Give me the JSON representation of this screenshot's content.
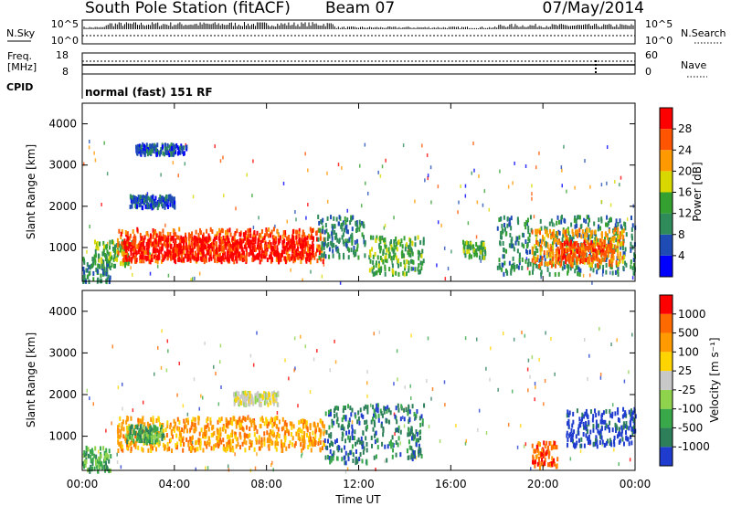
{
  "header": {
    "station": "South Pole Station (fitACF)",
    "beam": "Beam 07",
    "date": "07/May/2014"
  },
  "aux_panels": {
    "nsky_label": "N.Sky",
    "nsky_ticks": [
      "10^5",
      "10^0"
    ],
    "nsearch_label": "N.Search",
    "nsearch_ticks": [
      "10^5",
      "10^0"
    ],
    "freq_label_1": "Freq.",
    "freq_label_2": "[MHz]",
    "freq_ticks": [
      "18",
      "8"
    ],
    "nave_label": "Nave",
    "nave_ticks": [
      "60",
      "0"
    ],
    "cpid_label": "CPID",
    "cpid_value": "normal (fast) 151 RF"
  },
  "chart_data": [
    {
      "type": "heatmap",
      "name": "power",
      "ylabel": "Slant Range [km]",
      "ylim": [
        180,
        4500
      ],
      "yticks": [
        "1000",
        "2000",
        "3000",
        "4000"
      ],
      "xlim": [
        "00:00",
        "24:00"
      ],
      "colorbar_label": "Power [dB]",
      "colorbar_ticks": [
        "4",
        "8",
        "12",
        "16",
        "20",
        "24",
        "28"
      ],
      "colorbar_colors": [
        "#0000ff",
        "#1e4cb4",
        "#2f8c5a",
        "#34a030",
        "#d8d800",
        "#ff9900",
        "#ff5500",
        "#ff0000"
      ],
      "regions": [
        {
          "t0": 0.0,
          "t1": 1.2,
          "r0": 200,
          "r1": 800,
          "level": 2
        },
        {
          "t0": 0.5,
          "t1": 2.0,
          "r0": 600,
          "r1": 1200,
          "level": 3
        },
        {
          "t0": 1.5,
          "t1": 10.5,
          "r0": 700,
          "r1": 1500,
          "level": 6
        },
        {
          "t0": 1.8,
          "t1": 10.0,
          "r0": 750,
          "r1": 1300,
          "level": 7
        },
        {
          "t0": 2.0,
          "t1": 4.0,
          "r0": 2000,
          "r1": 2300,
          "level": 1
        },
        {
          "t0": 2.3,
          "t1": 4.5,
          "r0": 3300,
          "r1": 3550,
          "level": 1
        },
        {
          "t0": 10.2,
          "t1": 12.3,
          "r0": 800,
          "r1": 1800,
          "level": 2
        },
        {
          "t0": 12.4,
          "t1": 14.8,
          "r0": 400,
          "r1": 1300,
          "level": 3
        },
        {
          "t0": 16.5,
          "t1": 17.5,
          "r0": 800,
          "r1": 1200,
          "level": 3
        },
        {
          "t0": 18.0,
          "t1": 24.0,
          "r0": 400,
          "r1": 1800,
          "level": 2
        },
        {
          "t0": 19.5,
          "t1": 23.5,
          "r0": 600,
          "r1": 1500,
          "level": 5
        },
        {
          "t0": 20.5,
          "t1": 23.0,
          "r0": 700,
          "r1": 1200,
          "level": 6
        }
      ]
    },
    {
      "type": "heatmap",
      "name": "velocity",
      "ylabel": "Slant Range [km]",
      "ylim": [
        180,
        4500
      ],
      "yticks": [
        "1000",
        "2000",
        "3000",
        "4000"
      ],
      "xlabel": "Time UT",
      "xticks": [
        "00:00",
        "04:00",
        "08:00",
        "12:00",
        "16:00",
        "20:00",
        "00:00"
      ],
      "colorbar_label": "Velocity [m s⁻¹]",
      "colorbar_ticks": [
        "1000",
        "500",
        "100",
        "25",
        "-25",
        "-100",
        "-500",
        "-1000"
      ],
      "colorbar_colors": [
        "#1f3ccf",
        "#2d7f5a",
        "#39a84a",
        "#8fd34c",
        "#c8c8c8",
        "#ffd400",
        "#ff9a00",
        "#ff6a00",
        "#ff0000"
      ],
      "regions": [
        {
          "t0": 0.0,
          "t1": 1.2,
          "r0": 200,
          "r1": 800,
          "level": 2
        },
        {
          "t0": 1.5,
          "t1": 10.5,
          "r0": 700,
          "r1": 1500,
          "level": 6
        },
        {
          "t0": 1.8,
          "t1": 3.5,
          "r0": 900,
          "r1": 1300,
          "level": 2
        },
        {
          "t0": 6.5,
          "t1": 8.5,
          "r0": 1800,
          "r1": 2100,
          "level": 4
        },
        {
          "t0": 10.5,
          "t1": 14.8,
          "r0": 400,
          "r1": 1800,
          "level": 1
        },
        {
          "t0": 19.5,
          "t1": 20.6,
          "r0": 300,
          "r1": 900,
          "level": 7
        },
        {
          "t0": 21.0,
          "t1": 24.0,
          "r0": 800,
          "r1": 1700,
          "level": 0
        }
      ]
    }
  ]
}
